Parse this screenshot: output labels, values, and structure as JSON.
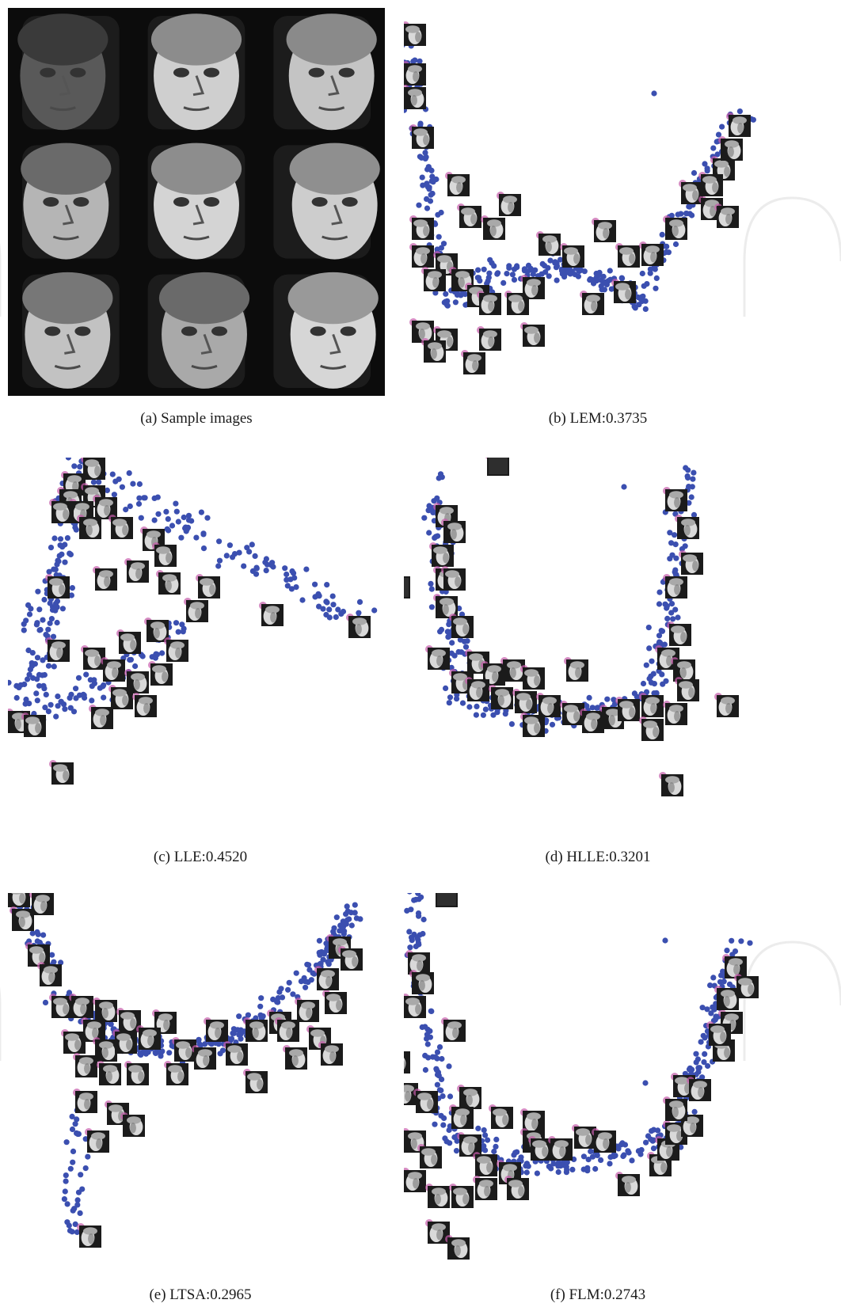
{
  "figure": {
    "panels": [
      {
        "id": "a",
        "caption": "(a)  Sample images",
        "kind": "image-grid"
      },
      {
        "id": "b",
        "caption": "(b)  LEM:0.3735",
        "kind": "embedding"
      },
      {
        "id": "c",
        "caption": "(c)  LLE:0.4520",
        "kind": "embedding"
      },
      {
        "id": "d",
        "caption": "(d)  HLLE:0.3201",
        "kind": "embedding"
      },
      {
        "id": "e",
        "caption": "(e)  LTSA:0.2965",
        "kind": "embedding"
      },
      {
        "id": "f",
        "caption": "(f)  FLM:0.2743",
        "kind": "embedding"
      }
    ]
  },
  "colors": {
    "point": "#3b4fb0",
    "highlight": "#c35aa8",
    "thumb_dark": "#1b1b1b",
    "face_light": "#d9d9d9",
    "face_shadow": "#6c6c6c",
    "caption": "#1a1a1a"
  }
}
